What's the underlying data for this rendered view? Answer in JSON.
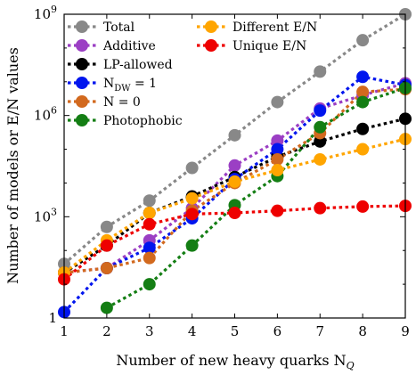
{
  "chart_data": {
    "type": "line",
    "xlabel": "Number of new heavy quarks N",
    "xlabel_sub": "Q",
    "ylabel": "Number of models or E/N values",
    "xlim": [
      1,
      9
    ],
    "ylog": true,
    "ylim": [
      1,
      1000000000
    ],
    "x_ticks": [
      "1",
      "2",
      "3",
      "4",
      "5",
      "6",
      "7",
      "8",
      "9"
    ],
    "y_ticks": [
      {
        "value": 1,
        "label": "1"
      },
      {
        "value": 1000,
        "label": "10",
        "exp": "3"
      },
      {
        "value": 1000000,
        "label": "10",
        "exp": "6"
      },
      {
        "value": 1000000000,
        "label": "10",
        "exp": "9"
      }
    ],
    "grid": false,
    "legend_position": "top",
    "series": [
      {
        "name": "Total",
        "color": "#888888",
        "x": [
          1,
          2,
          3,
          4,
          5,
          6,
          7,
          8,
          9
        ],
        "values": [
          40,
          500,
          3000,
          28000,
          260000,
          2500000,
          20000000,
          170000000,
          1000000000
        ]
      },
      {
        "name": "Additive",
        "color": "#9b3fc4",
        "x": [
          1,
          2,
          3,
          4,
          5,
          6,
          7,
          8,
          9
        ],
        "values": [
          22,
          30,
          200,
          1800,
          33000,
          180000,
          1600000,
          4000000,
          9000000
        ]
      },
      {
        "name": "LP-allowed",
        "color": "#000000",
        "x": [
          1,
          2,
          3,
          4,
          5,
          6,
          7,
          8,
          9
        ],
        "values": [
          22,
          140,
          1300,
          4000,
          15000,
          60000,
          170000,
          400000,
          800000
        ]
      },
      {
        "name": "N_DW = 1",
        "color": "#0015ee",
        "x": [
          1,
          2,
          3,
          4,
          5,
          6,
          7,
          8,
          9
        ],
        "values": [
          1.5,
          30,
          120,
          900,
          13000,
          100000,
          1400000,
          14000000,
          8000000
        ]
      },
      {
        "name": "N = 0",
        "color": "#d2691e",
        "x": [
          1,
          2,
          3,
          4,
          5,
          6,
          7,
          8,
          9
        ],
        "values": [
          22,
          30,
          60,
          1500,
          10000,
          50000,
          300000,
          5000000,
          6000000
        ]
      },
      {
        "name": "Photophobic",
        "color": "#147e14",
        "x": [
          2,
          3,
          4,
          5,
          6,
          7,
          8,
          9
        ],
        "values": [
          2,
          10,
          140,
          2200,
          16000,
          450000,
          2500000,
          6500000
        ]
      },
      {
        "name": "Different E/N",
        "color": "#ffa500",
        "x": [
          1,
          2,
          3,
          4,
          5,
          6,
          7,
          8,
          9
        ],
        "values": [
          22,
          200,
          1300,
          3500,
          11000,
          24000,
          50000,
          100000,
          200000
        ]
      },
      {
        "name": "Unique E/N",
        "color": "#ee0000",
        "x": [
          1,
          2,
          3,
          4,
          5,
          6,
          7,
          8,
          9
        ],
        "values": [
          14,
          140,
          600,
          1200,
          1300,
          1500,
          1800,
          2000,
          2100
        ]
      }
    ],
    "legend_items": [
      {
        "text": "Total",
        "col": 0,
        "row": 0
      },
      {
        "text": "Additive",
        "col": 0,
        "row": 1
      },
      {
        "text": "LP-allowed",
        "col": 0,
        "row": 2
      },
      {
        "text": "N",
        "sub": "DW",
        "tail": " = 1",
        "col": 0,
        "row": 3
      },
      {
        "text": "N",
        "tail": " = 0",
        "col": 0,
        "row": 4
      },
      {
        "text": "Photophobic",
        "col": 0,
        "row": 5
      },
      {
        "text": "Different E/N",
        "col": 1,
        "row": 0
      },
      {
        "text": "Unique E/N",
        "col": 1,
        "row": 1
      }
    ]
  }
}
